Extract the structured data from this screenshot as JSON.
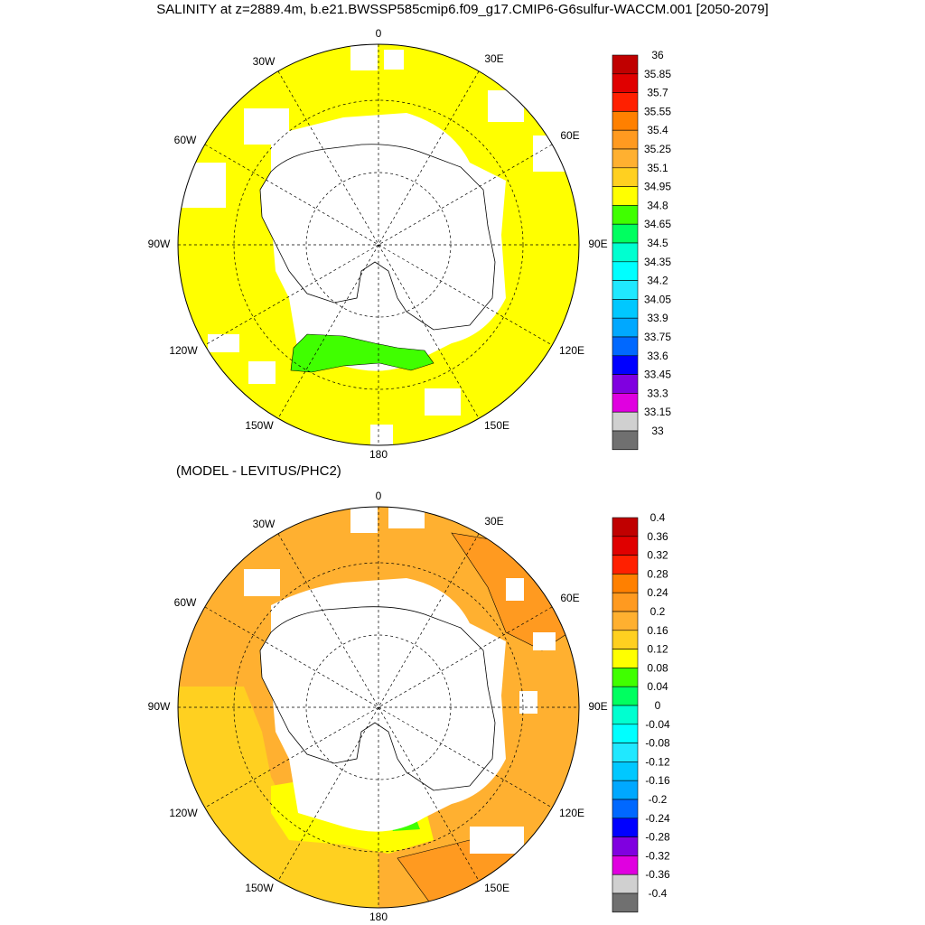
{
  "title": "SALINITY at z=2889.4m, b.e21.BWSSP585cmip6.f09_g17.CMIP6-G6sulfur-WACCM.001 [2050-2079]",
  "subtitle": "(MODEL - LEVITUS/PHC2)",
  "longitude_labels": [
    "0",
    "30E",
    "60E",
    "90E",
    "120E",
    "150E",
    "180",
    "150W",
    "120W",
    "90W",
    "60W",
    "30W"
  ],
  "chart_data": [
    {
      "type": "heatmap",
      "projection": "south polar stereographic",
      "title": "SALINITY at z=2889.4m, b.e21.BWSSP585cmip6.f09_g17.CMIP6-G6sulfur-WACCM.001 [2050-2079]",
      "colorbar": {
        "labels": [
          "36",
          "35.85",
          "35.7",
          "35.55",
          "35.4",
          "35.25",
          "35.1",
          "34.95",
          "34.8",
          "34.65",
          "34.5",
          "34.35",
          "34.2",
          "34.05",
          "33.9",
          "33.75",
          "33.6",
          "33.45",
          "33.3",
          "33.15",
          "33"
        ],
        "colors": [
          "#c00000",
          "#e00000",
          "#ff2000",
          "#ff8000",
          "#ff9a20",
          "#ffb030",
          "#ffd020",
          "#ffff00",
          "#40ff00",
          "#00ff60",
          "#00ffd0",
          "#00ffff",
          "#20e8ff",
          "#00c8ff",
          "#00a8ff",
          "#0068ff",
          "#0000ff",
          "#8000e0",
          "#e000e0",
          "#d0d0d0",
          "#707070"
        ]
      },
      "dominant_value_range": [
        34.8,
        34.95
      ],
      "regions": [
        {
          "description": "Southern Ocean broadly",
          "value_range": [
            34.8,
            34.95
          ],
          "color": "#ffff00"
        },
        {
          "description": "Ross Sea sector near 160W-180",
          "value_range": [
            34.65,
            34.8
          ],
          "color": "#40ff00"
        }
      ]
    },
    {
      "type": "heatmap",
      "projection": "south polar stereographic",
      "title": "(MODEL - LEVITUS/PHC2)",
      "colorbar": {
        "labels": [
          "0.4",
          "0.36",
          "0.32",
          "0.28",
          "0.24",
          "0.2",
          "0.16",
          "0.12",
          "0.08",
          "0.04",
          "0",
          "-0.04",
          "-0.08",
          "-0.12",
          "-0.16",
          "-0.2",
          "-0.24",
          "-0.28",
          "-0.32",
          "-0.36",
          "-0.4"
        ],
        "colors": [
          "#c00000",
          "#e00000",
          "#ff2000",
          "#ff8000",
          "#ff9a20",
          "#ffb030",
          "#ffd020",
          "#ffff00",
          "#40ff00",
          "#00ff60",
          "#00ffd0",
          "#00ffff",
          "#20e8ff",
          "#00c8ff",
          "#00a8ff",
          "#0068ff",
          "#0000ff",
          "#8000e0",
          "#e000e0",
          "#d0d0d0",
          "#707070"
        ]
      },
      "regions": [
        {
          "description": "Atlantic / Weddell sector",
          "value_range": [
            0.16,
            0.2
          ],
          "color": "#ffb030"
        },
        {
          "description": "Southwest Atlantic 30E-60E",
          "value_range": [
            0.2,
            0.24
          ],
          "color": "#ff9a20"
        },
        {
          "description": "Pacific 90W-120W",
          "value_range": [
            0.12,
            0.16
          ],
          "color": "#ffd020"
        },
        {
          "description": "Ross Sea sector",
          "value_range": [
            0.08,
            0.12
          ],
          "color": "#ffff00"
        },
        {
          "description": "Indian sector 90E-150E",
          "value_range": [
            0.16,
            0.2
          ],
          "color": "#ffb030"
        }
      ]
    }
  ]
}
